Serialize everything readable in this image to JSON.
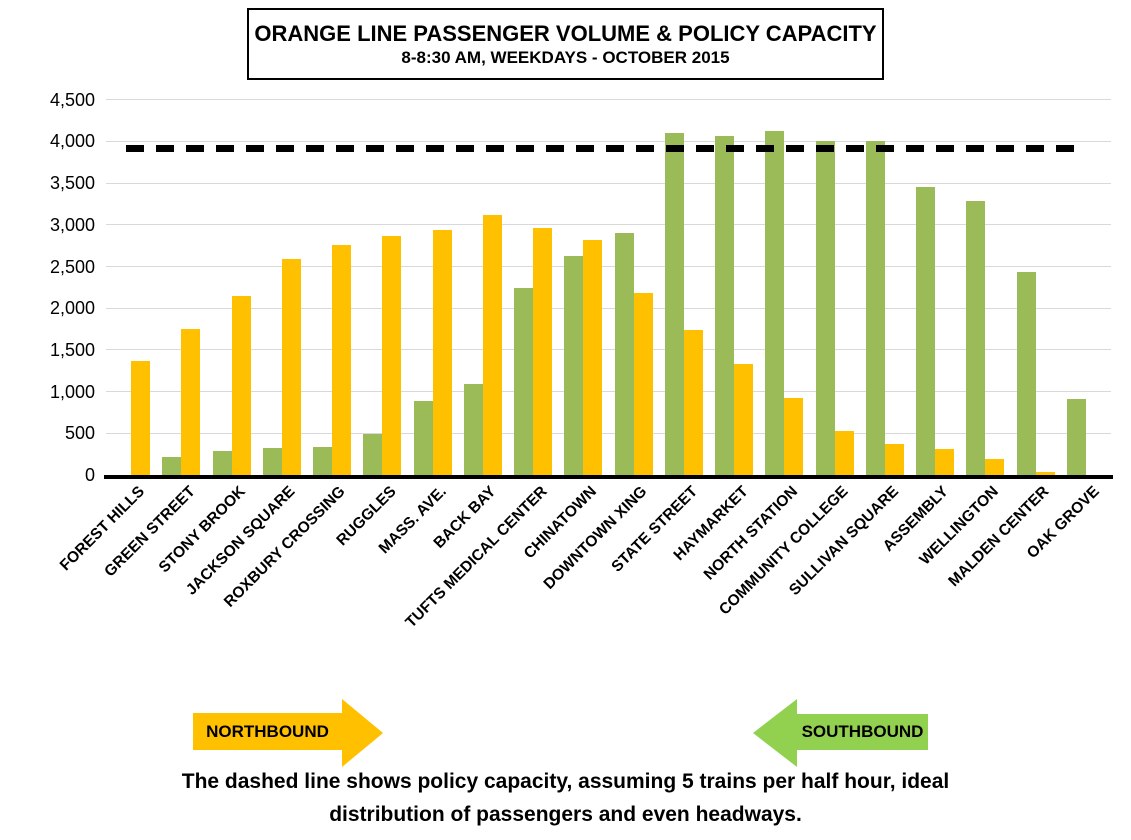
{
  "chart_data": {
    "type": "bar",
    "title": "ORANGE LINE PASSENGER VOLUME & POLICY CAPACITY",
    "subtitle": "8-8:30 AM, WEEKDAYS - OCTOBER 2015",
    "categories": [
      "FOREST HILLS",
      "GREEN STREET",
      "STONY BROOK",
      "JACKSON SQUARE",
      "ROXBURY CROSSING",
      "RUGGLES",
      "MASS. AVE.",
      "BACK BAY",
      "TUFTS MEDICAL CENTER",
      "CHINATOWN",
      "DOWNTOWN XING",
      "STATE STREET",
      "HAYMARKET",
      "NORTH STATION",
      "COMMUNITY COLLEGE",
      "SULLIVAN SQUARE",
      "ASSEMBLY",
      "WELLINGTON",
      "MALDEN CENTER",
      "OAK GROVE"
    ],
    "series": [
      {
        "name": "Southbound",
        "color": "#9BBB59",
        "values": [
          0,
          220,
          290,
          320,
          330,
          490,
          890,
          1090,
          2240,
          2630,
          2900,
          4100,
          4060,
          4120,
          4010,
          4000,
          3450,
          3280,
          2440,
          910
        ]
      },
      {
        "name": "Northbound",
        "color": "#FFC000",
        "values": [
          1370,
          1750,
          2150,
          2590,
          2760,
          2860,
          2940,
          3120,
          2960,
          2820,
          2180,
          1740,
          1330,
          920,
          530,
          370,
          310,
          190,
          30,
          0
        ]
      }
    ],
    "policy_capacity_line": {
      "value": 3920,
      "color": "#000000",
      "style": "thick-dashed"
    },
    "ylim": [
      0,
      4500
    ],
    "ytick_step": 500,
    "grid": true,
    "legend_position": "none",
    "gridline_color": "#D9D9D9"
  },
  "arrows": {
    "northbound": {
      "label": "NORTHBOUND",
      "color": "#FFC000"
    },
    "southbound": {
      "label": "SOUTHBOUND",
      "color": "#92D050"
    }
  },
  "caption": {
    "line1": "The dashed line shows policy capacity, assuming 5 trains per half hour, ideal",
    "line2": "distribution of passengers and even headways."
  }
}
